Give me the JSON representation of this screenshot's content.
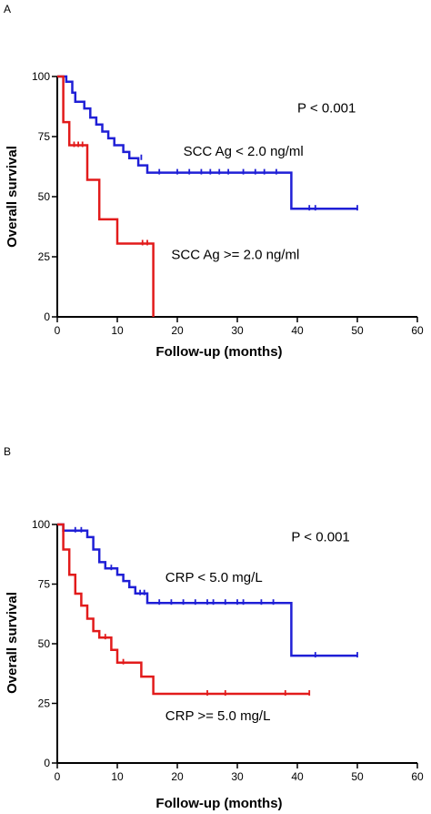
{
  "chart_data": [
    {
      "type": "line",
      "panel_label": "A",
      "title": "",
      "xlabel": "Follow-up (months)",
      "ylabel": "Overall survival",
      "xlim": [
        0,
        60
      ],
      "ylim": [
        0,
        100
      ],
      "xticks": [
        0,
        10,
        20,
        30,
        40,
        50,
        60
      ],
      "yticks": [
        0,
        25,
        50,
        75,
        100
      ],
      "grid": false,
      "annotations": [
        {
          "text": "P < 0.001",
          "x": 40,
          "y": 85
        },
        {
          "text": "SCC Ag < 2.0 ng/ml",
          "x": 21,
          "y": 67
        },
        {
          "text": "SCC Ag >= 2.0 ng/ml",
          "x": 19,
          "y": 24
        }
      ],
      "series": [
        {
          "name": "SCC Ag < 2.0 ng/ml",
          "color": "#1f1fd6",
          "steps": [
            [
              0,
              100
            ],
            [
              1,
              100
            ],
            [
              1.5,
              97.8
            ],
            [
              2.5,
              93.3
            ],
            [
              3,
              89.5
            ],
            [
              4.5,
              86.7
            ],
            [
              5.5,
              82.9
            ],
            [
              6.5,
              80
            ],
            [
              7.5,
              77.1
            ],
            [
              8.5,
              74.3
            ],
            [
              9.5,
              71.4
            ],
            [
              11,
              68.6
            ],
            [
              12,
              66
            ],
            [
              13.5,
              63
            ],
            [
              15,
              60
            ],
            [
              39,
              60
            ],
            [
              39,
              45
            ],
            [
              50,
              45
            ]
          ],
          "censored": [
            [
              14,
              66
            ],
            [
              17,
              60
            ],
            [
              20,
              60
            ],
            [
              22,
              60
            ],
            [
              24,
              60
            ],
            [
              25.5,
              60
            ],
            [
              27,
              60
            ],
            [
              28.5,
              60
            ],
            [
              31,
              60
            ],
            [
              33,
              60
            ],
            [
              34.5,
              60
            ],
            [
              36.5,
              60
            ],
            [
              42,
              45
            ],
            [
              43,
              45
            ],
            [
              50,
              45
            ]
          ]
        },
        {
          "name": "SCC Ag >= 2.0 ng/ml",
          "color": "#e21b1b",
          "steps": [
            [
              0,
              100
            ],
            [
              1,
              100
            ],
            [
              1,
              81
            ],
            [
              2,
              81
            ],
            [
              2,
              71.4
            ],
            [
              5,
              71.4
            ],
            [
              5,
              57
            ],
            [
              7,
              57
            ],
            [
              7,
              40.6
            ],
            [
              10,
              40.6
            ],
            [
              10,
              30.5
            ],
            [
              16,
              30.5
            ],
            [
              16,
              0
            ]
          ],
          "censored": [
            [
              2.8,
              71.4
            ],
            [
              3.5,
              71.4
            ],
            [
              4.2,
              71.4
            ],
            [
              14.2,
              30.5
            ],
            [
              15,
              30.5
            ]
          ]
        }
      ]
    },
    {
      "type": "line",
      "panel_label": "B",
      "title": "",
      "xlabel": "Follow-up (months)",
      "ylabel": "Overall survival",
      "xlim": [
        0,
        60
      ],
      "ylim": [
        0,
        100
      ],
      "xticks": [
        0,
        10,
        20,
        30,
        40,
        50,
        60
      ],
      "yticks": [
        0,
        25,
        50,
        75,
        100
      ],
      "grid": false,
      "annotations": [
        {
          "text": "P < 0.001",
          "x": 39,
          "y": 93
        },
        {
          "text": "CRP < 5.0 mg/L",
          "x": 18,
          "y": 76
        },
        {
          "text": "CRP >= 5.0 mg/L",
          "x": 18,
          "y": 18
        }
      ],
      "series": [
        {
          "name": "CRP < 5.0 mg/L",
          "color": "#1f1fd6",
          "steps": [
            [
              0,
              100
            ],
            [
              1,
              100
            ],
            [
              1,
              97.4
            ],
            [
              5,
              97.4
            ],
            [
              5,
              94.7
            ],
            [
              6,
              94.7
            ],
            [
              6,
              89.5
            ],
            [
              7,
              89.5
            ],
            [
              7,
              84.2
            ],
            [
              8,
              84.2
            ],
            [
              8,
              81.6
            ],
            [
              10,
              81.6
            ],
            [
              10,
              78.9
            ],
            [
              11,
              78.9
            ],
            [
              11,
              76.3
            ],
            [
              12,
              76.3
            ],
            [
              12,
              73.7
            ],
            [
              13,
              73.7
            ],
            [
              13,
              71.1
            ],
            [
              15,
              71.1
            ],
            [
              15,
              67.1
            ],
            [
              39,
              67.1
            ],
            [
              39,
              45
            ],
            [
              50,
              45
            ]
          ],
          "censored": [
            [
              3,
              97.4
            ],
            [
              4,
              97.4
            ],
            [
              9,
              81.6
            ],
            [
              13.8,
              71.1
            ],
            [
              14.5,
              71.1
            ],
            [
              17,
              67.1
            ],
            [
              19,
              67.1
            ],
            [
              21,
              67.1
            ],
            [
              23,
              67.1
            ],
            [
              25,
              67.1
            ],
            [
              26,
              67.1
            ],
            [
              28,
              67.1
            ],
            [
              30,
              67.1
            ],
            [
              31,
              67.1
            ],
            [
              34,
              67.1
            ],
            [
              36,
              67.1
            ],
            [
              43,
              45
            ],
            [
              50,
              45
            ]
          ]
        },
        {
          "name": "CRP >= 5.0 mg/L",
          "color": "#e21b1b",
          "steps": [
            [
              0,
              100
            ],
            [
              1,
              100
            ],
            [
              1,
              89.5
            ],
            [
              2,
              89.5
            ],
            [
              2,
              78.9
            ],
            [
              3,
              78.9
            ],
            [
              3,
              71
            ],
            [
              4,
              71
            ],
            [
              4,
              66
            ],
            [
              5,
              66
            ],
            [
              5,
              60.5
            ],
            [
              6,
              60.5
            ],
            [
              6,
              55.3
            ],
            [
              7,
              55.3
            ],
            [
              7,
              52.6
            ],
            [
              9,
              52.6
            ],
            [
              9,
              47.4
            ],
            [
              10,
              47.4
            ],
            [
              10,
              42.1
            ],
            [
              14,
              42.1
            ],
            [
              14,
              36.2
            ],
            [
              16,
              36.2
            ],
            [
              16,
              29
            ],
            [
              42,
              29
            ]
          ],
          "censored": [
            [
              8,
              52.6
            ],
            [
              11,
              42.1
            ],
            [
              25,
              29
            ],
            [
              28,
              29
            ],
            [
              38,
              29
            ],
            [
              42,
              29
            ]
          ]
        }
      ]
    }
  ]
}
